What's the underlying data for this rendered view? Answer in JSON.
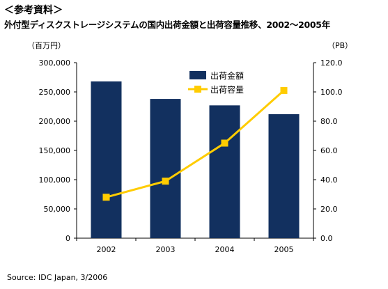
{
  "heading": {
    "line1": "＜参考資料＞",
    "line2": "外付型ディスクストレージシステムの国内出荷金額と出荷容量推移、2002～2005年"
  },
  "units": {
    "left": "（百万円）",
    "right": "（PB）"
  },
  "source": "Source: IDC Japan, 3/2006",
  "colors": {
    "bar": "#12305f",
    "line": "#ffcc00"
  },
  "chart_data": {
    "type": "bar",
    "categories": [
      "2002",
      "2003",
      "2004",
      "2005"
    ],
    "series": [
      {
        "name": "出荷金額",
        "kind": "bar",
        "axis": "left",
        "values": [
          268000,
          238000,
          227000,
          212000
        ]
      },
      {
        "name": "出荷容量",
        "kind": "line",
        "axis": "right",
        "values": [
          28,
          39,
          65,
          101
        ]
      }
    ],
    "y_left": {
      "min": 0,
      "max": 300000,
      "ticks": [
        "0",
        "50,000",
        "100,000",
        "150,000",
        "200,000",
        "250,000",
        "300,000"
      ]
    },
    "y_right": {
      "min": 0,
      "max": 120,
      "ticks": [
        "0.0",
        "20.0",
        "40.0",
        "60.0",
        "80.0",
        "100.0",
        "120.0"
      ]
    },
    "legend": {
      "position": "top-right"
    },
    "grid": false
  }
}
